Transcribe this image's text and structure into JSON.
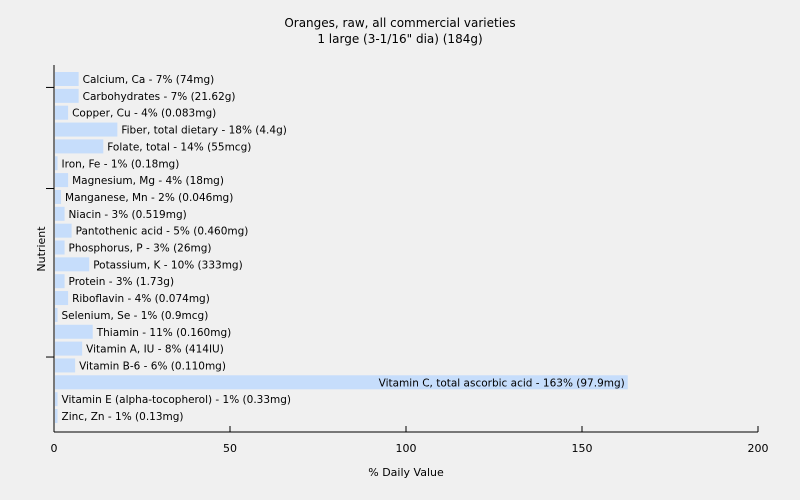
{
  "chart_data": {
    "type": "bar",
    "orientation": "horizontal",
    "title": "Oranges, raw, all commercial varieties",
    "subtitle": "1 large (3-1/16\" dia) (184g)",
    "xlabel": "% Daily Value",
    "ylabel": "Nutrient",
    "xlim": [
      0,
      200
    ],
    "xticks": [
      0,
      50,
      100,
      150,
      200
    ],
    "grid": false,
    "bar_color": "#c6ddfb",
    "categories": [
      "Calcium, Ca",
      "Carbohydrates",
      "Copper, Cu",
      "Fiber, total dietary",
      "Folate, total",
      "Iron, Fe",
      "Magnesium, Mg",
      "Manganese, Mn",
      "Niacin",
      "Pantothenic acid",
      "Phosphorus, P",
      "Potassium, K",
      "Protein",
      "Riboflavin",
      "Selenium, Se",
      "Thiamin",
      "Vitamin A, IU",
      "Vitamin B-6",
      "Vitamin C, total ascorbic acid",
      "Vitamin E (alpha-tocopherol)",
      "Zinc, Zn"
    ],
    "values": [
      7,
      7,
      4,
      18,
      14,
      1,
      4,
      2,
      3,
      5,
      3,
      10,
      3,
      4,
      1,
      11,
      8,
      6,
      163,
      1,
      1
    ],
    "labels": [
      "Calcium, Ca - 7% (74mg)",
      "Carbohydrates - 7% (21.62g)",
      "Copper, Cu - 4% (0.083mg)",
      "Fiber, total dietary - 18% (4.4g)",
      "Folate, total - 14% (55mcg)",
      "Iron, Fe - 1% (0.18mg)",
      "Magnesium, Mg - 4% (18mg)",
      "Manganese, Mn - 2% (0.046mg)",
      "Niacin - 3% (0.519mg)",
      "Pantothenic acid - 5% (0.460mg)",
      "Phosphorus, P - 3% (26mg)",
      "Potassium, K - 10% (333mg)",
      "Protein - 3% (1.73g)",
      "Riboflavin - 4% (0.074mg)",
      "Selenium, Se - 1% (0.9mcg)",
      "Thiamin - 11% (0.160mg)",
      "Vitamin A, IU - 8% (414IU)",
      "Vitamin B-6 - 6% (0.110mg)",
      "Vitamin C, total ascorbic acid - 163% (97.9mg)",
      "Vitamin E (alpha-tocopherol) - 1% (0.33mg)",
      "Zinc, Zn - 1% (0.13mg)"
    ]
  }
}
